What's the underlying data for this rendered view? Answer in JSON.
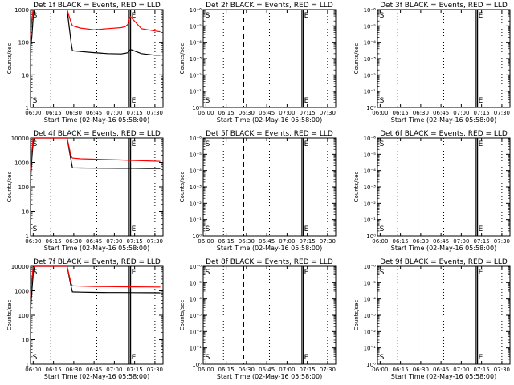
{
  "chart_data": [
    {
      "type": "line",
      "title": "Det 1f BLACK = Events, RED = LLD",
      "xlabel": "Start Time (02-May-16 05:58:00)",
      "ylabel": "Counts/sec",
      "yscale": "log",
      "ylim": [
        1,
        1000
      ],
      "xlim": [
        "05:58",
        "07:36"
      ],
      "x_ticks": [
        "06:00",
        "06:15",
        "06:30",
        "06:45",
        "07:00",
        "07:15",
        "07:30"
      ],
      "y_ticks": [
        "1",
        "10",
        "100",
        "1000"
      ],
      "markers": [
        {
          "label": "S",
          "x": "05:59"
        },
        {
          "label": "E",
          "x": "07:12"
        }
      ],
      "series": [
        {
          "color": "#000000",
          "x": [
            "05:58",
            "05:59",
            "06:00",
            "06:01",
            "06:02",
            "06:20",
            "06:25",
            "06:28",
            "06:29",
            "06:35",
            "06:45",
            "06:55",
            "07:05",
            "07:08",
            "07:10",
            "07:11",
            "07:12",
            "07:20",
            "07:30",
            "07:34"
          ],
          "values": [
            60,
            150,
            600,
            1000,
            1000,
            1000,
            1000,
            100,
            55,
            52,
            48,
            45,
            44,
            46,
            48,
            55,
            60,
            45,
            40,
            40
          ]
        },
        {
          "color": "#ff0000",
          "x": [
            "05:58",
            "05:59",
            "06:00",
            "06:01",
            "06:02",
            "06:20",
            "06:25",
            "06:28",
            "06:29",
            "06:35",
            "06:45",
            "06:55",
            "07:05",
            "07:08",
            "07:10",
            "07:11",
            "07:12",
            "07:20",
            "07:30",
            "07:34"
          ],
          "values": [
            150,
            500,
            1000,
            1000,
            1000,
            1000,
            1000,
            400,
            320,
            270,
            240,
            260,
            280,
            300,
            350,
            500,
            600,
            260,
            220,
            210
          ]
        }
      ]
    },
    {
      "type": "line",
      "title": "Det 2f BLACK = Events, RED = LLD",
      "xlabel": "Start Time (02-May-16 05:58:00)",
      "ylabel": "Counts/sec",
      "yscale": "log",
      "ylim": [
        1,
        1e-06
      ],
      "xlim": [
        "05:58",
        "07:36"
      ],
      "x_ticks": [
        "06:00",
        "06:15",
        "06:30",
        "06:45",
        "07:00",
        "07:15",
        "07:30"
      ],
      "y_ticks": [
        "10⁰",
        "10⁻¹",
        "10⁻²",
        "10⁻³",
        "10⁻⁴",
        "10⁻⁵",
        "10⁻⁶"
      ],
      "markers": [
        {
          "label": "S",
          "x": "05:59"
        },
        {
          "label": "E",
          "x": "07:12"
        }
      ],
      "series": []
    },
    {
      "type": "line",
      "title": "Det 3f BLACK = Events, RED = LLD",
      "xlabel": "Start Time (02-May-16 05:58:00)",
      "ylabel": "Counts/sec",
      "yscale": "log",
      "ylim": [
        1,
        1e-06
      ],
      "xlim": [
        "05:58",
        "07:36"
      ],
      "x_ticks": [
        "06:00",
        "06:15",
        "06:30",
        "06:45",
        "07:00",
        "07:15",
        "07:30"
      ],
      "y_ticks": [
        "10⁰",
        "10⁻¹",
        "10⁻²",
        "10⁻³",
        "10⁻⁴",
        "10⁻⁵",
        "10⁻⁶"
      ],
      "markers": [
        {
          "label": "S",
          "x": "05:59"
        },
        {
          "label": "E",
          "x": "07:12"
        }
      ],
      "series": []
    },
    {
      "type": "line",
      "title": "Det 4f BLACK = Events, RED = LLD",
      "xlabel": "Start Time (02-May-16 05:58:00)",
      "ylabel": "Counts/sec",
      "yscale": "log",
      "ylim": [
        1,
        10000
      ],
      "xlim": [
        "05:58",
        "07:36"
      ],
      "x_ticks": [
        "06:00",
        "06:15",
        "06:30",
        "06:45",
        "07:00",
        "07:15",
        "07:30"
      ],
      "y_ticks": [
        "1",
        "10",
        "100",
        "1000",
        "10000"
      ],
      "markers": [
        {
          "label": "S",
          "x": "05:59"
        },
        {
          "label": "E",
          "x": "07:12"
        }
      ],
      "series": [
        {
          "color": "#000000",
          "x": [
            "05:58",
            "05:59",
            "06:00",
            "06:01",
            "06:02",
            "06:20",
            "06:25",
            "06:28",
            "06:29",
            "06:35",
            "06:45",
            "06:55",
            "07:05",
            "07:15",
            "07:25",
            "07:34"
          ],
          "values": [
            150,
            1500,
            7000,
            10000,
            10000,
            10000,
            10000,
            1200,
            600,
            590,
            580,
            575,
            570,
            570,
            565,
            560
          ]
        },
        {
          "color": "#ff0000",
          "x": [
            "05:58",
            "05:59",
            "06:00",
            "06:01",
            "06:02",
            "06:20",
            "06:25",
            "06:28",
            "06:29",
            "06:35",
            "06:45",
            "06:55",
            "07:05",
            "07:15",
            "07:25",
            "07:34"
          ],
          "values": [
            500,
            3000,
            10000,
            10000,
            10000,
            10000,
            10000,
            1800,
            1500,
            1400,
            1350,
            1300,
            1250,
            1200,
            1150,
            1100
          ]
        }
      ]
    },
    {
      "type": "line",
      "title": "Det 5f BLACK = Events, RED = LLD",
      "xlabel": "Start Time (02-May-16 05:58:00)",
      "ylabel": "Counts/sec",
      "yscale": "log",
      "ylim": [
        1,
        1e-06
      ],
      "xlim": [
        "05:58",
        "07:36"
      ],
      "x_ticks": [
        "06:00",
        "06:15",
        "06:30",
        "06:45",
        "07:00",
        "07:15",
        "07:30"
      ],
      "y_ticks": [
        "10⁰",
        "10⁻¹",
        "10⁻²",
        "10⁻³",
        "10⁻⁴",
        "10⁻⁵",
        "10⁻⁶"
      ],
      "markers": [
        {
          "label": "S",
          "x": "05:59"
        },
        {
          "label": "E",
          "x": "07:12"
        }
      ],
      "series": []
    },
    {
      "type": "line",
      "title": "Det 6f BLACK = Events, RED = LLD",
      "xlabel": "Start Time (02-May-16 05:58:00)",
      "ylabel": "Counts/sec",
      "yscale": "log",
      "ylim": [
        1,
        1e-06
      ],
      "xlim": [
        "05:58",
        "07:36"
      ],
      "x_ticks": [
        "06:00",
        "06:15",
        "06:30",
        "06:45",
        "07:00",
        "07:15",
        "07:30"
      ],
      "y_ticks": [
        "10⁰",
        "10⁻¹",
        "10⁻²",
        "10⁻³",
        "10⁻⁴",
        "10⁻⁵",
        "10⁻⁶"
      ],
      "markers": [
        {
          "label": "S",
          "x": "05:59"
        },
        {
          "label": "E",
          "x": "07:12"
        }
      ],
      "series": []
    },
    {
      "type": "line",
      "title": "Det 7f BLACK = Events, RED = LLD",
      "xlabel": "Start Time (02-May-16 05:58:00)",
      "ylabel": "Counts/sec",
      "yscale": "log",
      "ylim": [
        1,
        10000
      ],
      "xlim": [
        "05:58",
        "07:36"
      ],
      "x_ticks": [
        "06:00",
        "06:15",
        "06:30",
        "06:45",
        "07:00",
        "07:15",
        "07:30"
      ],
      "y_ticks": [
        "1",
        "10",
        "100",
        "1000",
        "10000"
      ],
      "markers": [
        {
          "label": "S",
          "x": "05:59"
        },
        {
          "label": "E",
          "x": "07:12"
        }
      ],
      "series": [
        {
          "color": "#000000",
          "x": [
            "05:58",
            "05:59",
            "06:00",
            "06:01",
            "06:02",
            "06:20",
            "06:25",
            "06:28",
            "06:29",
            "06:35",
            "06:45",
            "06:55",
            "07:05",
            "07:15",
            "07:25",
            "07:34"
          ],
          "values": [
            150,
            1000,
            5000,
            10000,
            10000,
            10000,
            10000,
            1500,
            900,
            880,
            860,
            850,
            845,
            840,
            835,
            830
          ]
        },
        {
          "color": "#ff0000",
          "x": [
            "05:58",
            "05:59",
            "06:00",
            "06:01",
            "06:02",
            "06:20",
            "06:25",
            "06:28",
            "06:29",
            "06:35",
            "06:45",
            "06:55",
            "07:05",
            "07:15",
            "07:25",
            "07:34"
          ],
          "values": [
            600,
            3000,
            9000,
            10000,
            10000,
            10000,
            10000,
            2000,
            1600,
            1550,
            1500,
            1480,
            1460,
            1450,
            1440,
            1430
          ]
        }
      ]
    },
    {
      "type": "line",
      "title": "Det 8f BLACK = Events, RED = LLD",
      "xlabel": "Start Time (02-May-16 05:58:00)",
      "ylabel": "Counts/sec",
      "yscale": "log",
      "ylim": [
        1,
        1e-06
      ],
      "xlim": [
        "05:58",
        "07:36"
      ],
      "x_ticks": [
        "06:00",
        "06:15",
        "06:30",
        "06:45",
        "07:00",
        "07:15",
        "07:30"
      ],
      "y_ticks": [
        "10⁰",
        "10⁻¹",
        "10⁻²",
        "10⁻³",
        "10⁻⁴",
        "10⁻⁵",
        "10⁻⁶"
      ],
      "markers": [
        {
          "label": "S",
          "x": "05:59"
        },
        {
          "label": "E",
          "x": "07:12"
        }
      ],
      "series": []
    },
    {
      "type": "line",
      "title": "Det 9f BLACK = Events, RED = LLD",
      "xlabel": "Start Time (02-May-16 05:58:00)",
      "ylabel": "Counts/sec",
      "yscale": "log",
      "ylim": [
        1,
        1e-06
      ],
      "xlim": [
        "05:58",
        "07:36"
      ],
      "x_ticks": [
        "06:00",
        "06:15",
        "06:30",
        "06:45",
        "07:00",
        "07:15",
        "07:30"
      ],
      "y_ticks": [
        "10⁰",
        "10⁻¹",
        "10⁻²",
        "10⁻³",
        "10⁻⁴",
        "10⁻⁵",
        "10⁻⁶"
      ],
      "markers": [
        {
          "label": "S",
          "x": "05:59"
        },
        {
          "label": "E",
          "x": "07:12"
        }
      ],
      "series": []
    }
  ]
}
